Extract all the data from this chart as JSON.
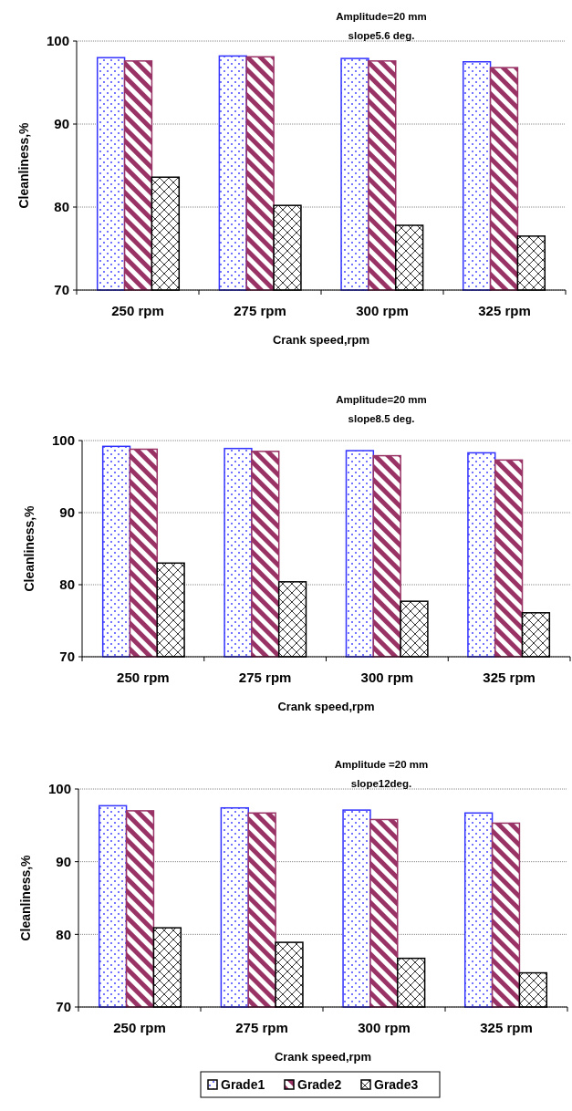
{
  "chart_data": [
    {
      "type": "bar",
      "annotations": [
        "Amplitude=20 mm",
        "slope5.6 deg."
      ],
      "xlabel": "Crank speed,rpm",
      "ylabel": "Cleanliness,%",
      "categories": [
        "250 rpm",
        "275 rpm",
        "300 rpm",
        "325 rpm"
      ],
      "ylim": [
        70,
        100
      ],
      "yticks": [
        70,
        80,
        90,
        100
      ],
      "grid": "y",
      "legend": false,
      "series": [
        {
          "color": "#3333ff",
          "values": [
            98.0,
            98.2,
            97.9,
            97.5
          ]
        },
        {
          "color": "#993366",
          "values": [
            97.6,
            98.1,
            97.6,
            96.8
          ]
        },
        {
          "color": "#000000",
          "values": [
            83.6,
            80.2,
            77.8,
            76.5
          ]
        }
      ]
    },
    {
      "type": "bar",
      "annotations": [
        "Amplitude=20 mm",
        "slope8.5 deg."
      ],
      "xlabel": "Crank speed,rpm",
      "ylabel": "Cleanliness,%",
      "categories": [
        "250 rpm",
        "275 rpm",
        "300 rpm",
        "325 rpm"
      ],
      "ylim": [
        70,
        100
      ],
      "yticks": [
        70,
        80,
        90,
        100
      ],
      "grid": "y",
      "legend": false,
      "series": [
        {
          "color": "#3333ff",
          "values": [
            99.2,
            98.9,
            98.6,
            98.3
          ]
        },
        {
          "color": "#993366",
          "values": [
            98.8,
            98.5,
            97.9,
            97.3
          ]
        },
        {
          "color": "#000000",
          "values": [
            83.0,
            80.4,
            77.7,
            76.1
          ]
        }
      ]
    },
    {
      "type": "bar",
      "annotations": [
        "Amplitude =20 mm",
        "slope12deg."
      ],
      "xlabel": "Crank speed,rpm",
      "ylabel": "Cleanliness,%",
      "categories": [
        "250 rpm",
        "275 rpm",
        "300 rpm",
        "325 rpm"
      ],
      "ylim": [
        70,
        100
      ],
      "yticks": [
        70,
        80,
        90,
        100
      ],
      "grid": "y",
      "legend": "bottom",
      "series": [
        {
          "name": "Grade1",
          "color": "#3333ff",
          "values": [
            97.7,
            97.4,
            97.1,
            96.7
          ]
        },
        {
          "name": "Grade2",
          "color": "#993366",
          "values": [
            97.0,
            96.7,
            95.8,
            95.3
          ]
        },
        {
          "name": "Grade3",
          "color": "#000000",
          "values": [
            80.9,
            78.9,
            76.7,
            74.7
          ]
        }
      ]
    }
  ]
}
